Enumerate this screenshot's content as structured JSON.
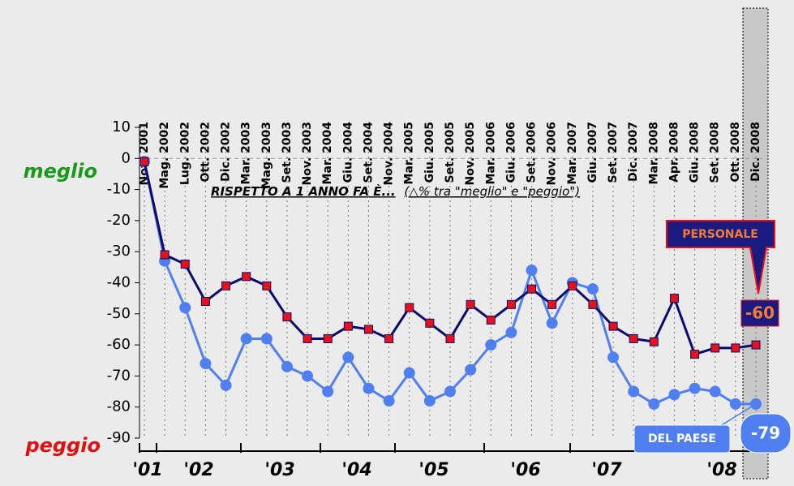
{
  "chart_data": {
    "type": "line",
    "annotation": "RISPETTO A 1 ANNO FA È...",
    "annotation_note": "(△% tra \"meglio\" e \"peggio\")",
    "top_label": "meglio",
    "bottom_label": "peggio",
    "categories": [
      "Nov. 2001",
      "Mag. 2002",
      "Lug. 2002",
      "Ott. 2002",
      "Dic. 2002",
      "Mar. 2003",
      "Mag. 2003",
      "Set. 2003",
      "Nov. 2003",
      "Mar. 2004",
      "Giu. 2004",
      "Set. 2004",
      "Nov. 2004",
      "Mar. 2005",
      "Giu. 2005",
      "Set. 2005",
      "Nov. 2005",
      "Mar. 2006",
      "Giu. 2006",
      "Set. 2006",
      "Nov. 2006",
      "Mar. 2007",
      "Giu. 2007",
      "Set. 2007",
      "Dic. 2007",
      "Mar. 2008",
      "Apr. 2008",
      "Giu. 2008",
      "Set. 2008",
      "Ott. 2008",
      "Dic. 2008"
    ],
    "year_labels": [
      "'01",
      "'02",
      "'03",
      "'04",
      "'05",
      "'06",
      "'07",
      "'08"
    ],
    "series": [
      {
        "name": "PERSONALE",
        "color": "#0a0a6e",
        "marker_color": "#e8101a",
        "values": [
          -1,
          -31,
          -34,
          -46,
          -41,
          -38,
          -41,
          -51,
          -58,
          -58,
          -54,
          -55,
          -58,
          -48,
          -53,
          -58,
          -47,
          -52,
          -47,
          -42,
          -47,
          -41,
          -47,
          -54,
          -58,
          -59,
          -45,
          -63,
          -61,
          -61,
          -60
        ]
      },
      {
        "name": "DEL PAESE",
        "color": "#4f7ff0",
        "values": [
          -1,
          -33,
          -48,
          -66,
          -73,
          -58,
          -58,
          -67,
          -70,
          -75,
          -64,
          -74,
          -78,
          -69,
          -78,
          -75,
          -68,
          -60,
          -56,
          -36,
          -53,
          -40,
          -42,
          -64,
          -75,
          -79,
          -76,
          -74,
          -75,
          -79,
          -79
        ]
      }
    ],
    "ylim": [
      -90,
      10
    ],
    "yticks": [
      10,
      0,
      -10,
      -20,
      -30,
      -40,
      -50,
      -60,
      -70,
      -80,
      -90
    ],
    "grid": true
  }
}
